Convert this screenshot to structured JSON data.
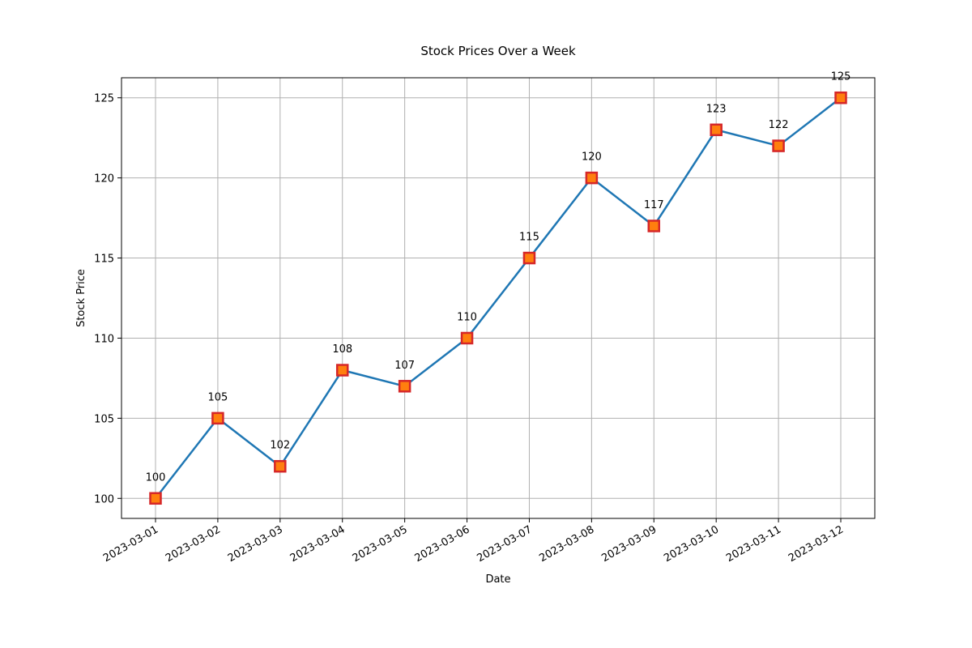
{
  "chart_data": {
    "type": "line",
    "title": "Stock Prices Over a Week",
    "xlabel": "Date",
    "ylabel": "Stock Price",
    "x": [
      "2023-03-01",
      "2023-03-02",
      "2023-03-03",
      "2023-03-04",
      "2023-03-05",
      "2023-03-06",
      "2023-03-07",
      "2023-03-08",
      "2023-03-09",
      "2023-03-10",
      "2023-03-11",
      "2023-03-12"
    ],
    "series": [
      {
        "values": [
          100,
          105,
          102,
          108,
          107,
          110,
          115,
          120,
          117,
          123,
          122,
          125
        ]
      }
    ],
    "data_labels": [
      "100",
      "105",
      "102",
      "108",
      "107",
      "110",
      "115",
      "120",
      "117",
      "123",
      "122",
      "125"
    ],
    "yticks": [
      100,
      105,
      110,
      115,
      120,
      125
    ],
    "ylim": [
      98.75,
      126.25
    ],
    "grid": true,
    "colors": {
      "line": "#1f77b4",
      "marker_face": "#ff7f0e",
      "marker_edge": "#d62728",
      "grid": "#b0b0b0"
    }
  }
}
